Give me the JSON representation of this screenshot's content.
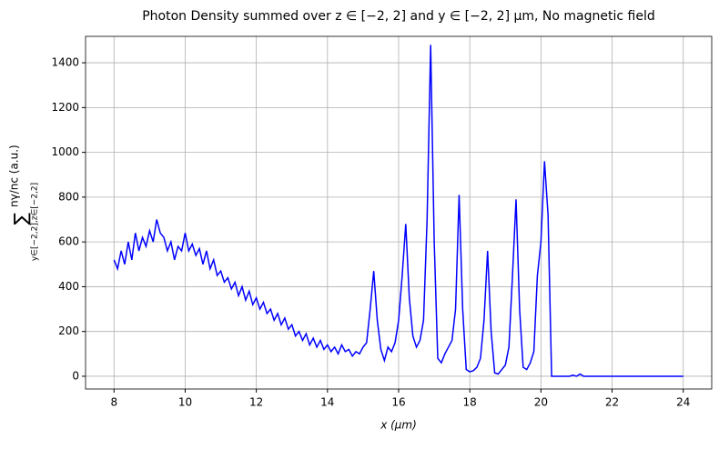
{
  "chart_data": {
    "type": "line",
    "title": "Photon Density summed over z ∈ [−2, 2] and y ∈ [−2, 2] μm, No magnetic field",
    "xlabel": "x (μm)",
    "ylabel": {
      "symbol": "∑",
      "range": "y∈[−2,2],z∈[−2,2]",
      "quantity": "nγ/nc (a.u.)"
    },
    "color": "#0000ff",
    "grid": true,
    "xlim": [
      7.2,
      24.8
    ],
    "ylim": [
      -57,
      1518
    ],
    "xticks": [
      8,
      10,
      12,
      14,
      16,
      18,
      20,
      22,
      24
    ],
    "yticks": [
      0,
      200,
      400,
      600,
      800,
      1000,
      1200,
      1400
    ],
    "x": [
      8.0,
      8.1,
      8.2,
      8.3,
      8.4,
      8.5,
      8.6,
      8.7,
      8.8,
      8.9,
      9.0,
      9.1,
      9.2,
      9.3,
      9.4,
      9.5,
      9.6,
      9.7,
      9.8,
      9.9,
      10.0,
      10.1,
      10.2,
      10.3,
      10.4,
      10.5,
      10.6,
      10.7,
      10.8,
      10.9,
      11.0,
      11.1,
      11.2,
      11.3,
      11.4,
      11.5,
      11.6,
      11.7,
      11.8,
      11.9,
      12.0,
      12.1,
      12.2,
      12.3,
      12.4,
      12.5,
      12.6,
      12.7,
      12.8,
      12.9,
      13.0,
      13.1,
      13.2,
      13.3,
      13.4,
      13.5,
      13.6,
      13.7,
      13.8,
      13.9,
      14.0,
      14.1,
      14.2,
      14.3,
      14.4,
      14.5,
      14.6,
      14.7,
      14.8,
      14.9,
      15.0,
      15.1,
      15.2,
      15.3,
      15.4,
      15.5,
      15.6,
      15.7,
      15.8,
      15.9,
      16.0,
      16.1,
      16.2,
      16.3,
      16.4,
      16.5,
      16.6,
      16.7,
      16.8,
      16.9,
      17.0,
      17.1,
      17.2,
      17.3,
      17.4,
      17.5,
      17.6,
      17.7,
      17.8,
      17.9,
      18.0,
      18.1,
      18.2,
      18.3,
      18.4,
      18.5,
      18.6,
      18.7,
      18.8,
      18.9,
      19.0,
      19.1,
      19.2,
      19.3,
      19.4,
      19.5,
      19.6,
      19.7,
      19.8,
      19.9,
      20.0,
      20.1,
      20.2,
      20.3,
      20.4,
      20.5,
      20.6,
      20.7,
      20.8,
      20.9,
      21.0,
      21.1,
      21.2,
      21.3,
      21.4,
      21.5,
      21.6,
      21.7,
      21.8,
      21.9,
      22.0,
      22.1,
      22.2,
      22.3,
      22.4,
      22.5,
      22.6,
      22.7,
      22.8,
      22.9,
      23.0,
      23.1,
      23.2,
      23.3,
      23.4,
      23.5,
      23.6,
      23.7,
      23.8,
      23.9,
      24.0
    ],
    "values": [
      520,
      480,
      560,
      500,
      600,
      520,
      640,
      560,
      620,
      580,
      650,
      600,
      700,
      640,
      620,
      560,
      600,
      520,
      580,
      560,
      640,
      560,
      590,
      540,
      570,
      500,
      560,
      480,
      520,
      450,
      470,
      420,
      440,
      390,
      420,
      360,
      400,
      340,
      380,
      320,
      350,
      300,
      330,
      280,
      300,
      250,
      280,
      230,
      260,
      210,
      230,
      180,
      200,
      160,
      190,
      140,
      170,
      130,
      160,
      120,
      140,
      110,
      130,
      100,
      140,
      110,
      120,
      90,
      110,
      100,
      130,
      150,
      300,
      470,
      250,
      120,
      70,
      130,
      110,
      150,
      250,
      450,
      680,
      350,
      180,
      130,
      160,
      250,
      700,
      1480,
      600,
      80,
      60,
      100,
      130,
      160,
      300,
      810,
      300,
      30,
      20,
      25,
      40,
      80,
      250,
      560,
      200,
      15,
      10,
      30,
      50,
      130,
      450,
      790,
      300,
      40,
      30,
      60,
      110,
      450,
      600,
      960,
      720,
      0,
      0,
      0,
      0,
      0,
      0,
      5,
      0,
      10,
      0,
      0,
      0,
      0,
      0,
      0,
      0,
      0,
      0,
      0,
      0,
      0,
      0,
      0,
      0,
      0,
      0,
      0,
      0,
      0,
      0,
      0,
      0,
      0,
      0,
      0,
      0,
      0,
      0
    ]
  }
}
